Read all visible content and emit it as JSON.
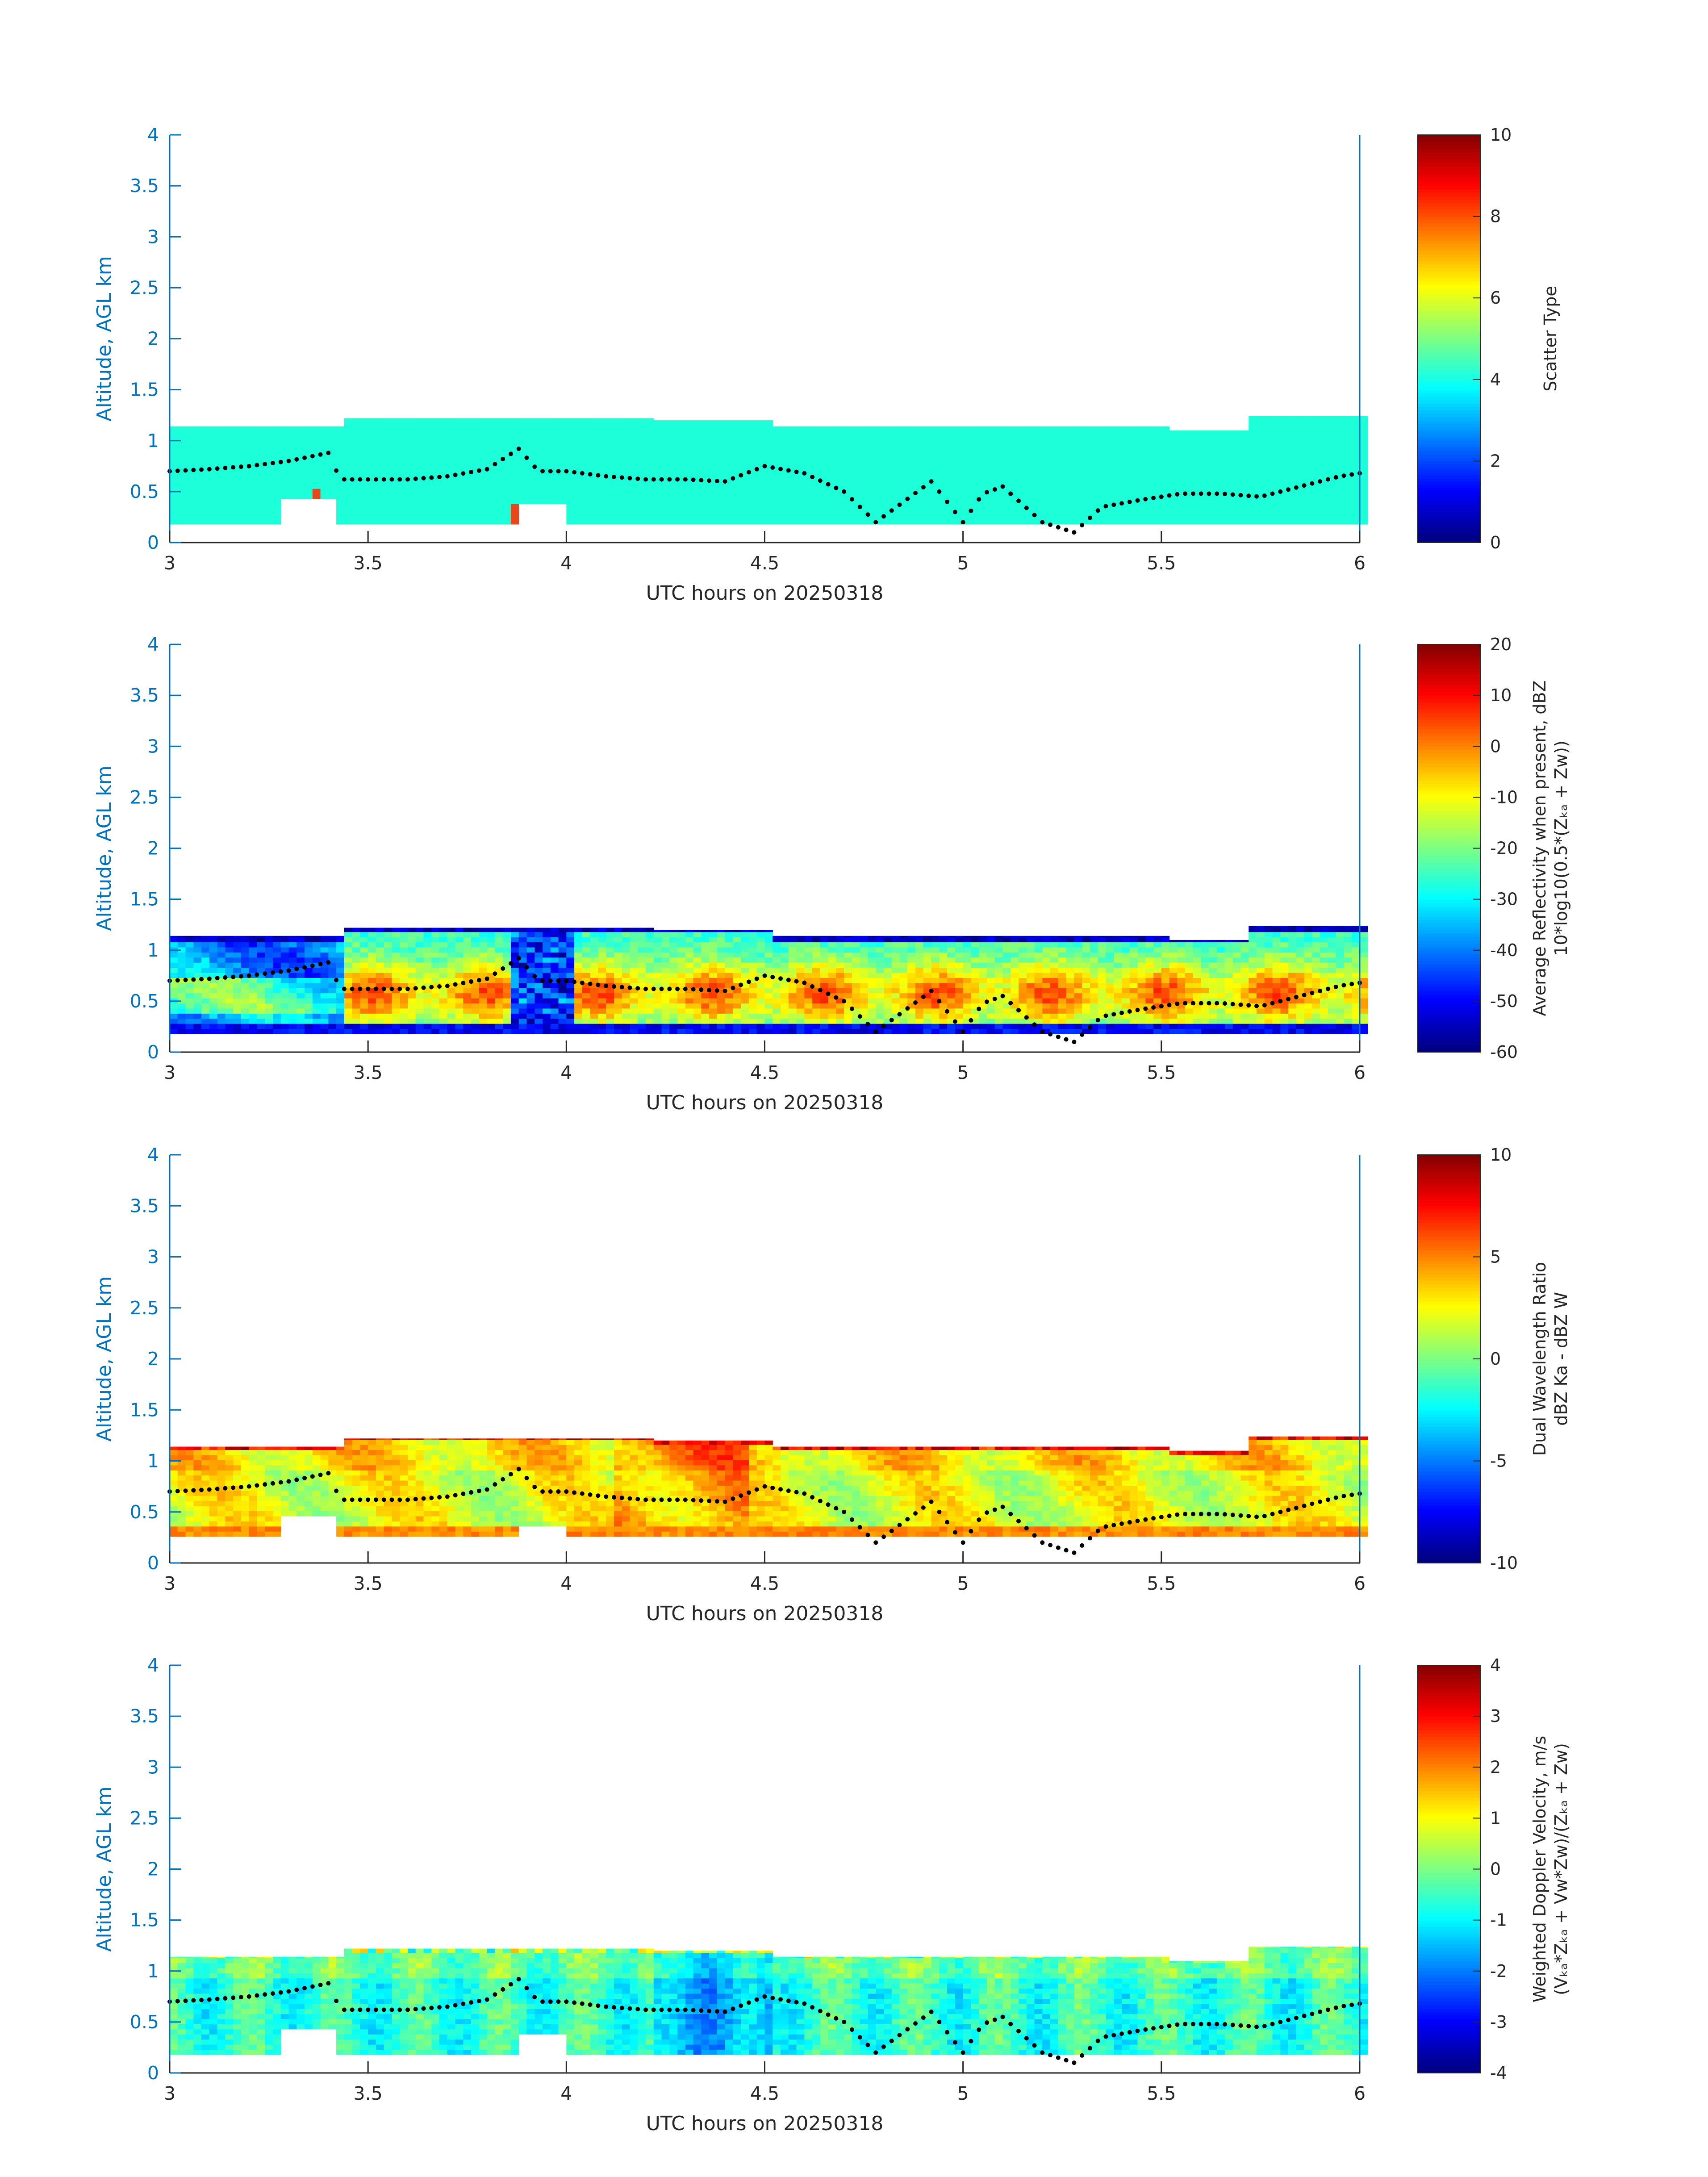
{
  "chart_data": [
    {
      "type": "heatmap",
      "panel": "scatter-type",
      "ylabel": "Altitude, AGL km",
      "xlabel": "UTC hours on 20250318",
      "xlim": [
        3,
        6
      ],
      "ylim": [
        0,
        4
      ],
      "x_ticks": [
        "3",
        "3.5",
        "4",
        "4.5",
        "5",
        "5.5",
        "6"
      ],
      "y_ticks": [
        "0",
        "0.5",
        "1",
        "1.5",
        "2",
        "2.5",
        "3",
        "3.5",
        "4"
      ],
      "colorbar": {
        "range": [
          0,
          10
        ],
        "ticks": [
          "0",
          "2",
          "4",
          "6",
          "8",
          "10"
        ],
        "label_lines": [
          "Scatter Type"
        ]
      },
      "dominant_value": 3.7,
      "colormap": "jet"
    },
    {
      "type": "heatmap",
      "panel": "reflectivity",
      "ylabel": "Altitude, AGL km",
      "xlabel": "UTC hours on 20250318",
      "xlim": [
        3,
        6
      ],
      "ylim": [
        0,
        4
      ],
      "x_ticks": [
        "3",
        "3.5",
        "4",
        "4.5",
        "5",
        "5.5",
        "6"
      ],
      "y_ticks": [
        "0",
        "0.5",
        "1",
        "1.5",
        "2",
        "2.5",
        "3",
        "3.5",
        "4"
      ],
      "colorbar": {
        "range": [
          -60,
          20
        ],
        "ticks": [
          "-60",
          "-50",
          "-40",
          "-30",
          "-20",
          "-10",
          "0",
          "10",
          "20"
        ],
        "label_lines": [
          "Average Reflectivity when present, dBZ",
          "10*log10(0.5*(Zₖₐ + Zᴡ))"
        ]
      },
      "colormap": "jet"
    },
    {
      "type": "heatmap",
      "panel": "dwr",
      "ylabel": "Altitude, AGL km",
      "xlabel": "UTC hours on 20250318",
      "xlim": [
        3,
        6
      ],
      "ylim": [
        0,
        4
      ],
      "x_ticks": [
        "3",
        "3.5",
        "4",
        "4.5",
        "5",
        "5.5",
        "6"
      ],
      "y_ticks": [
        "0",
        "0.5",
        "1",
        "1.5",
        "2",
        "2.5",
        "3",
        "3.5",
        "4"
      ],
      "colorbar": {
        "range": [
          -10,
          10
        ],
        "ticks": [
          "-10",
          "-5",
          "0",
          "5",
          "10"
        ],
        "label_lines": [
          "Dual Wavelength Ratio",
          "dBZ Ka - dBZ W"
        ]
      },
      "colormap": "jet"
    },
    {
      "type": "heatmap",
      "panel": "doppler",
      "ylabel": "Altitude, AGL km",
      "xlabel": "UTC hours on 20250318",
      "xlim": [
        3,
        6
      ],
      "ylim": [
        0,
        4
      ],
      "x_ticks": [
        "3",
        "3.5",
        "4",
        "4.5",
        "5",
        "5.5",
        "6"
      ],
      "y_ticks": [
        "0",
        "0.5",
        "1",
        "1.5",
        "2",
        "2.5",
        "3",
        "3.5",
        "4"
      ],
      "colorbar": {
        "range": [
          -4,
          4
        ],
        "ticks": [
          "-4",
          "-3",
          "-2",
          "-1",
          "0",
          "1",
          "2",
          "3",
          "4"
        ],
        "label_lines": [
          "Weighted Doppler Velocity, m/s",
          "(Vₖₐ*Zₖₐ + Vᴡ*Zᴡ)/(Zₖₐ + Zᴡ)"
        ]
      },
      "colormap": "jet"
    }
  ],
  "overlay": {
    "series_marker": "dots",
    "x": [
      3.0,
      3.1,
      3.2,
      3.3,
      3.4,
      3.43,
      3.5,
      3.6,
      3.7,
      3.8,
      3.88,
      3.93,
      4.0,
      4.1,
      4.2,
      4.3,
      4.4,
      4.5,
      4.6,
      4.7,
      4.78,
      4.85,
      4.92,
      5.0,
      5.05,
      5.1,
      5.2,
      5.28,
      5.35,
      5.45,
      5.55,
      5.65,
      5.75,
      5.85,
      5.95,
      6.0
    ],
    "y": [
      0.7,
      0.72,
      0.75,
      0.8,
      0.88,
      0.62,
      0.62,
      0.62,
      0.65,
      0.72,
      0.92,
      0.7,
      0.7,
      0.65,
      0.62,
      0.62,
      0.6,
      0.75,
      0.68,
      0.5,
      0.2,
      0.4,
      0.6,
      0.2,
      0.48,
      0.55,
      0.2,
      0.1,
      0.35,
      0.42,
      0.48,
      0.48,
      0.45,
      0.55,
      0.65,
      0.68
    ]
  },
  "colors": {
    "axis_blue": "#0072BD",
    "axis_dark": "#262626",
    "scatter_fill": "#1DFFD8",
    "scatter_red": "#E8461B"
  }
}
